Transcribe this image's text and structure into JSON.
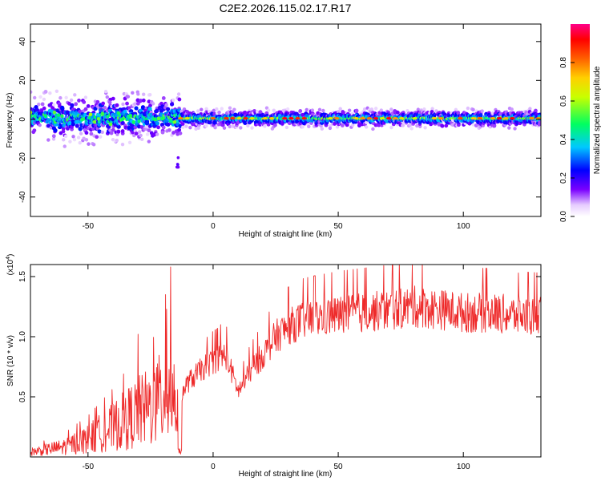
{
  "title": "C2E2.2026.115.02.17.R17",
  "colors": {
    "snr_line": "#ee2a2a",
    "background": "#ffffff",
    "axis": "#000000"
  },
  "chart_data": [
    {
      "type": "heatmap",
      "xlabel": "Height of straight line (km)",
      "ylabel": "Frequency (Hz)",
      "xlim": [
        -73,
        131
      ],
      "ylim": [
        -50,
        49
      ],
      "x_ticks": [
        -50,
        0,
        50,
        100
      ],
      "y_ticks": [
        40,
        20,
        0,
        -20,
        -40
      ],
      "x_tick_labels": [
        "-50",
        "0",
        "50",
        "100"
      ],
      "y_tick_labels": [
        "40",
        "20",
        "0",
        "-20",
        "-40"
      ],
      "grid": false,
      "description_of_field": {
        "band_center_hz": 0.5,
        "band_halfwidth_hz_low_heights": 5,
        "band_halfwidth_hz_high_heights": 2,
        "transition_height_km": -13,
        "outlier_cluster": {
          "x": -14,
          "y_range": [
            -25,
            -19
          ]
        }
      },
      "colorbar": {
        "label": "Normalized spectral amplitude",
        "range": [
          0,
          1
        ],
        "ticks": [
          0.0,
          0.2,
          0.4,
          0.6,
          0.8
        ],
        "tick_labels": [
          "0.0",
          "0.2",
          "0.4",
          "0.6",
          "0.8"
        ],
        "colormap": [
          "#ffffff",
          "#7a00ff",
          "#0000ff",
          "#00ffff",
          "#00ff00",
          "#ffff00",
          "#ff8800",
          "#ff0000",
          "#ff0088"
        ]
      }
    },
    {
      "type": "line",
      "xlabel": "Height of straight line (km)",
      "ylabel": "SNR (10 * v/v)",
      "y_multiplier": "(x10",
      "y_multiplier_exp": "4",
      "y_multiplier_close": ")",
      "xlim": [
        -73,
        131
      ],
      "ylim": [
        0,
        1.6
      ],
      "x_ticks": [
        -50,
        0,
        50,
        100
      ],
      "y_ticks": [
        0.5,
        1.0,
        1.5
      ],
      "x_tick_labels": [
        "-50",
        "0",
        "50",
        "100"
      ],
      "y_tick_labels": [
        "0.5",
        "1.0",
        "1.5"
      ],
      "grid": false,
      "series": [
        {
          "trend_x": [
            -73,
            -60,
            -50,
            -40,
            -30,
            -25,
            -20,
            -17,
            -14,
            -12,
            -10,
            -5,
            0,
            5,
            10,
            12,
            15,
            20,
            25,
            30,
            35,
            40,
            50,
            60,
            70,
            80,
            90,
            100,
            110,
            120,
            131
          ],
          "trend_y": [
            0.05,
            0.1,
            0.18,
            0.3,
            0.45,
            0.5,
            0.6,
            0.7,
            0.5,
            0.55,
            0.62,
            0.72,
            0.8,
            0.85,
            0.55,
            0.6,
            0.72,
            0.85,
            1.0,
            1.08,
            1.13,
            1.15,
            1.18,
            1.2,
            1.22,
            1.25,
            1.23,
            1.2,
            1.2,
            1.18,
            1.17
          ],
          "spikes": [
            {
              "x": -17,
              "y": 1.58
            },
            {
              "x": -19,
              "y": 1.35
            },
            {
              "x": 79.5,
              "y": 1.6
            },
            {
              "x": 122,
              "y": 1.53
            },
            {
              "x": 3,
              "y": 1.1
            },
            {
              "x": -30,
              "y": 1.02
            }
          ]
        }
      ]
    }
  ]
}
